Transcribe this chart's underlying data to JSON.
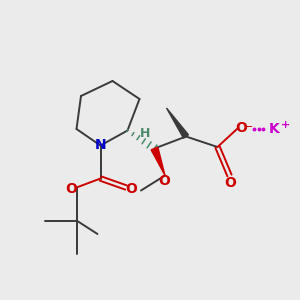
{
  "background_color": "#ebebeb",
  "bond_color": "#3a3a3a",
  "nitrogen_color": "#0000cc",
  "oxygen_color": "#cc0000",
  "potassium_color": "#cc00cc",
  "hydrogen_color": "#4a8a6a",
  "figsize": [
    3.0,
    3.0
  ],
  "dpi": 100,
  "xlim": [
    0,
    10
  ],
  "ylim": [
    0,
    10
  ],
  "lw": 1.4
}
